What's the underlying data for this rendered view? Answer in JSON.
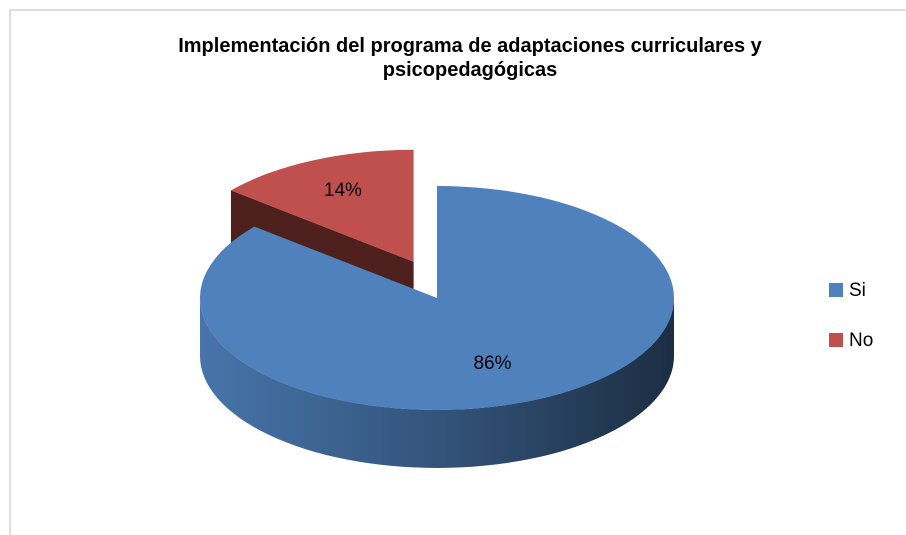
{
  "chart_data": {
    "type": "pie3d",
    "title": "Implementación del programa de adaptaciones curriculares y psicopedagógicas",
    "categories": [
      "Si",
      "No"
    ],
    "values": [
      86,
      14
    ],
    "value_labels": [
      "86%",
      "14%"
    ],
    "colors": [
      "#4f81bd",
      "#c0504d"
    ],
    "legend": "right"
  }
}
